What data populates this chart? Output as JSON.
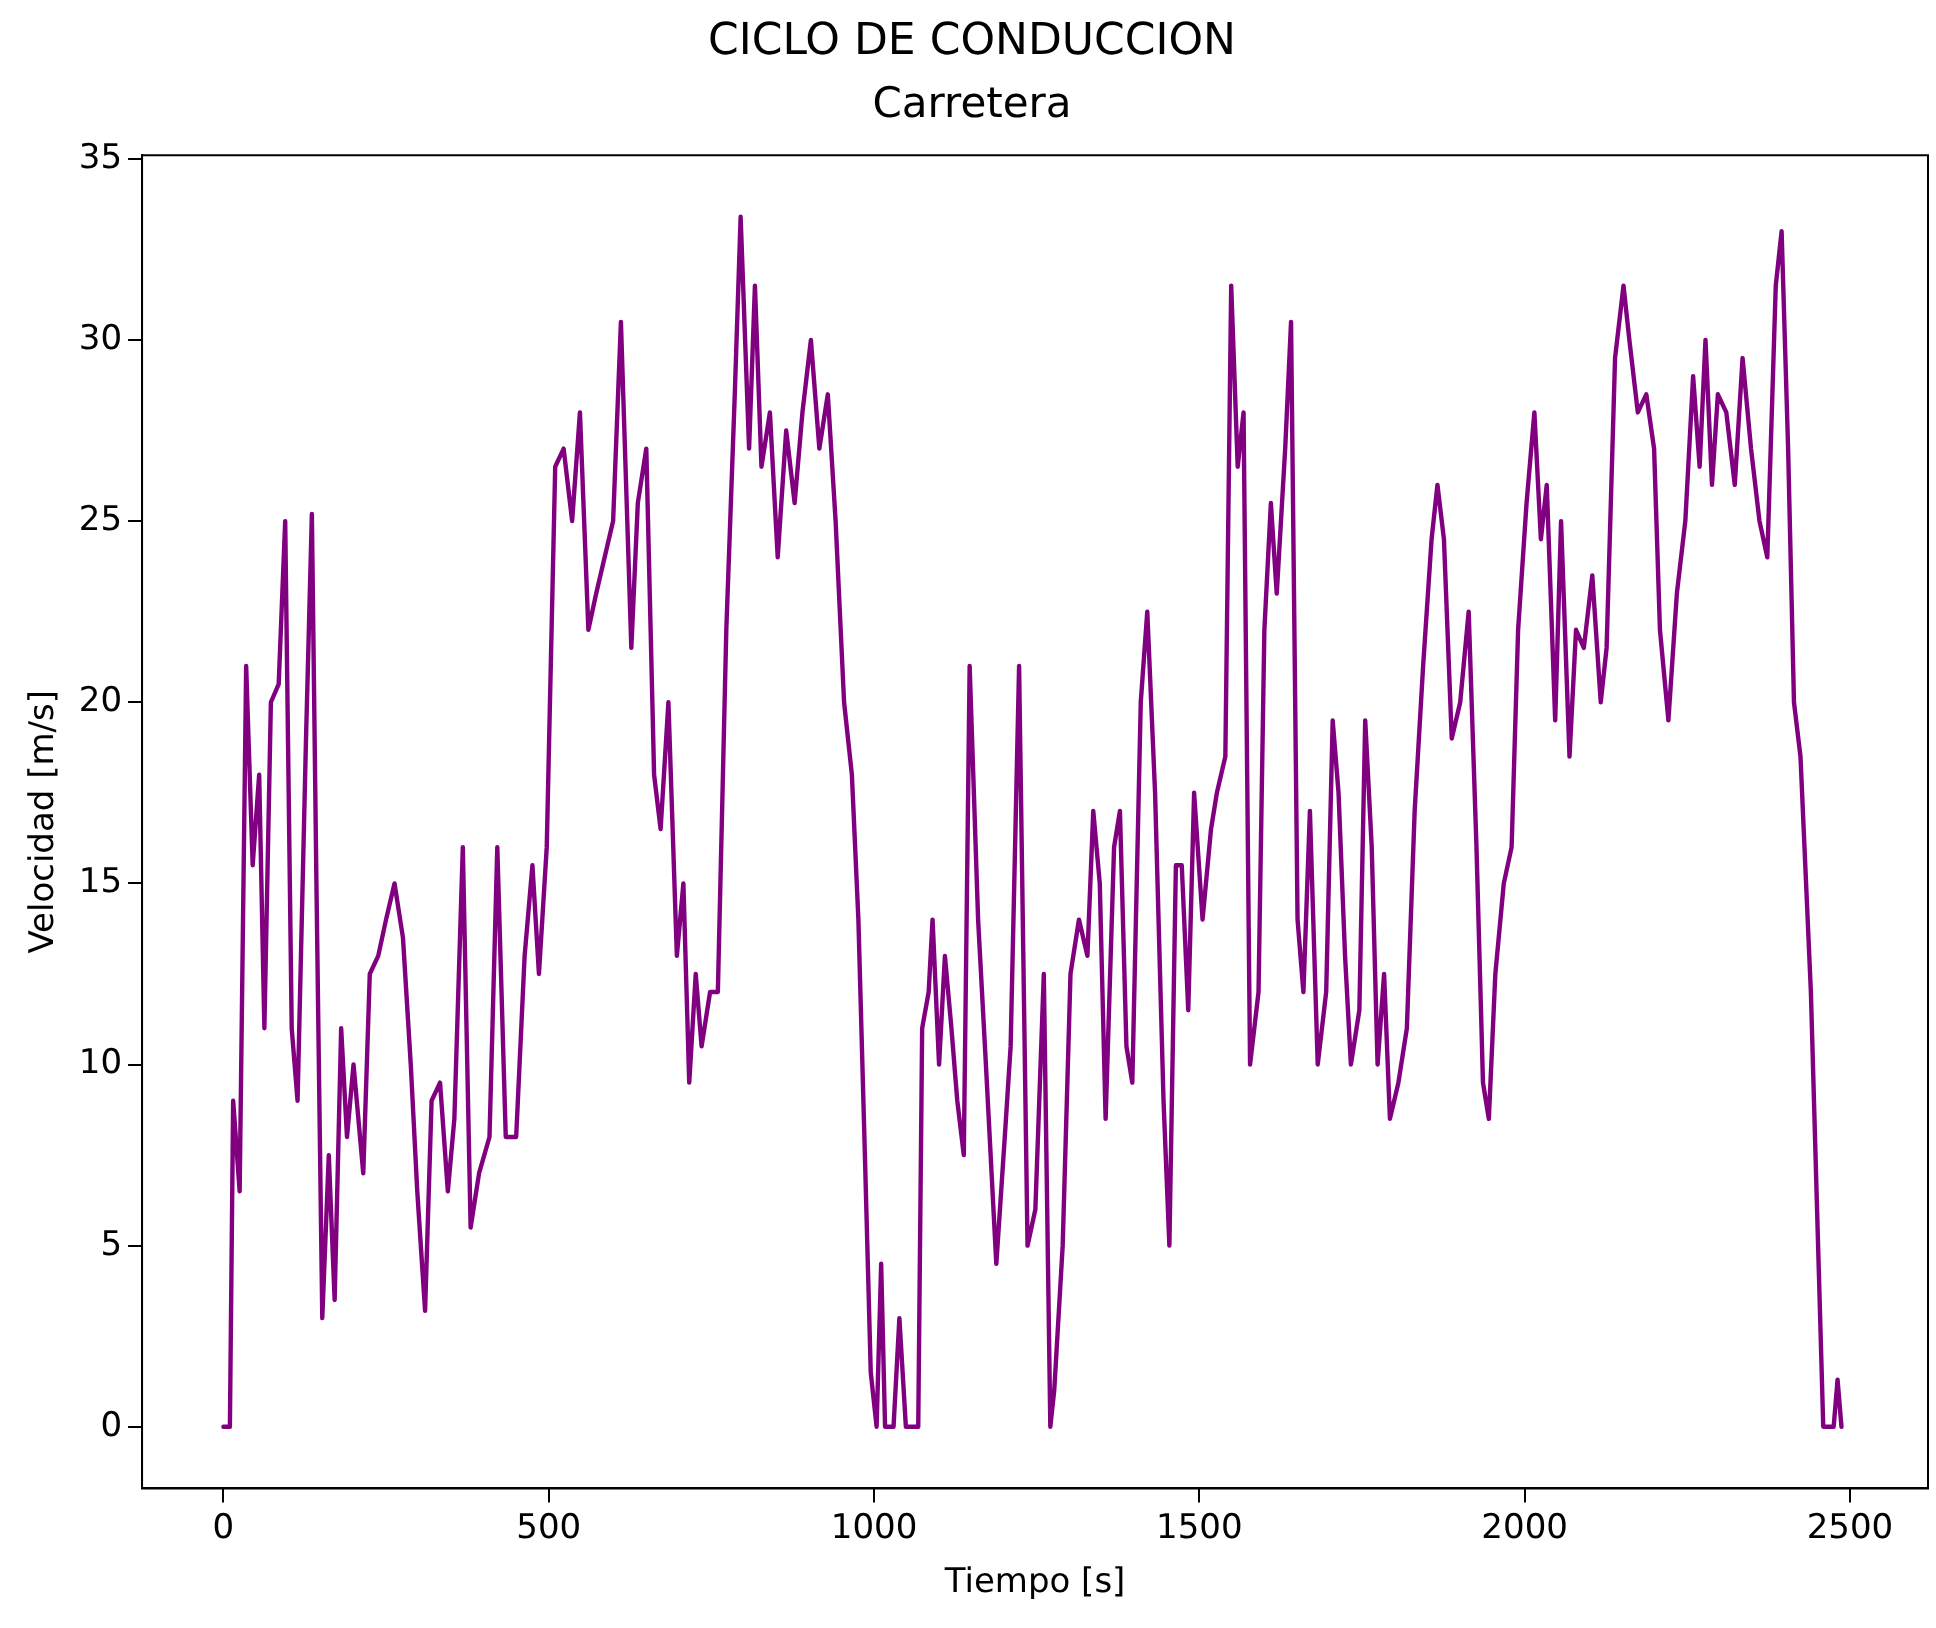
{
  "chart_data": {
    "type": "line",
    "title": "CICLO DE CONDUCCION",
    "subtitle": "Carretera",
    "xlabel": "Tiempo [s]",
    "ylabel": "Velocidad [m/s]",
    "xlim": [
      -125,
      2620
    ],
    "ylim": [
      -1.7,
      35.1
    ],
    "xticks": [
      0,
      500,
      1000,
      1500,
      2000,
      2500
    ],
    "yticks": [
      0,
      5,
      10,
      15,
      20,
      25,
      30,
      35
    ],
    "grid": false,
    "legend": false,
    "marker": "none",
    "line_style": "solid",
    "series": [
      {
        "color": "#800080",
        "x": [
          0,
          10,
          15,
          25,
          35,
          45,
          55,
          63,
          73,
          85,
          95,
          105,
          114,
          127,
          136,
          143,
          152,
          162,
          171,
          181,
          190,
          200,
          215,
          225,
          238,
          250,
          263,
          276,
          288,
          298,
          310,
          320,
          333,
          345,
          355,
          368,
          380,
          393,
          409,
          421,
          434,
          450,
          463,
          475,
          485,
          497,
          510,
          523,
          536,
          548,
          561,
          573,
          586,
          599,
          611,
          627,
          637,
          650,
          662,
          672,
          684,
          697,
          707,
          716,
          726,
          735,
          748,
          760,
          773,
          786,
          795,
          808,
          817,
          827,
          840,
          852,
          865,
          878,
          890,
          903,
          916,
          929,
          941,
          954,
          966,
          976,
          986,
          995,
          1004,
          1011,
          1017,
          1030,
          1039,
          1049,
          1061,
          1068,
          1074,
          1084,
          1090,
          1100,
          1109,
          1119,
          1128,
          1138,
          1147,
          1160,
          1172,
          1188,
          1201,
          1210,
          1223,
          1236,
          1248,
          1261,
          1271,
          1277,
          1290,
          1302,
          1315,
          1328,
          1337,
          1347,
          1356,
          1369,
          1378,
          1388,
          1397,
          1410,
          1420,
          1432,
          1445,
          1454,
          1464,
          1473,
          1483,
          1492,
          1505,
          1518,
          1527,
          1540,
          1549,
          1559,
          1568,
          1578,
          1591,
          1600,
          1610,
          1619,
          1632,
          1641,
          1651,
          1660,
          1670,
          1682,
          1695,
          1705,
          1714,
          1724,
          1733,
          1746,
          1755,
          1765,
          1774,
          1784,
          1793,
          1806,
          1819,
          1831,
          1844,
          1857,
          1866,
          1876,
          1888,
          1901,
          1914,
          1926,
          1936,
          1945,
          1955,
          1968,
          1980,
          1990,
          2003,
          2015,
          2025,
          2034,
          2047,
          2056,
          2069,
          2079,
          2091,
          2104,
          2117,
          2126,
          2139,
          2152,
          2161,
          2174,
          2187,
          2199,
          2208,
          2221,
          2234,
          2247,
          2259,
          2269,
          2278,
          2288,
          2297,
          2310,
          2323,
          2335,
          2348,
          2361,
          2373,
          2386,
          2395,
          2405,
          2414,
          2424,
          2440,
          2459,
          2475,
          2481,
          2487
        ],
        "values": [
          0,
          0,
          9,
          6.5,
          21,
          15.5,
          18,
          11,
          20,
          20.5,
          25,
          11,
          9,
          19,
          25.2,
          15,
          3,
          7.5,
          3.5,
          11,
          8,
          10,
          7,
          12.5,
          13,
          14,
          15,
          13.5,
          10,
          6.5,
          3.2,
          9,
          9.5,
          6.5,
          8.5,
          16,
          5.5,
          7,
          8,
          16,
          8,
          8,
          13,
          15.5,
          12.5,
          16,
          26.5,
          27,
          25,
          28,
          22,
          23,
          24,
          25,
          30.5,
          21.5,
          25.5,
          27,
          18,
          16.5,
          20,
          13,
          15,
          9.5,
          12.5,
          10.5,
          12,
          12,
          22,
          28.5,
          33.4,
          27,
          31.5,
          26.5,
          28,
          24,
          27.5,
          25.5,
          28,
          30,
          27,
          28.5,
          25,
          20,
          18,
          14,
          7.5,
          1.5,
          0,
          4.5,
          0,
          0,
          3,
          0,
          0,
          0,
          11,
          12,
          14,
          10,
          13,
          11,
          9,
          7.5,
          21,
          14,
          10,
          4.5,
          8,
          10.5,
          21,
          5,
          6,
          12.5,
          0,
          1,
          5,
          12.5,
          14,
          13,
          17,
          15,
          8.5,
          16,
          17,
          10.5,
          9.5,
          20,
          22.5,
          17.5,
          9,
          5,
          15.5,
          15.5,
          11.5,
          17.5,
          14,
          16.5,
          17.5,
          18.5,
          31.5,
          26.5,
          28,
          10,
          12,
          22,
          25.5,
          23,
          27,
          30.5,
          14,
          12,
          17,
          10,
          12,
          19.5,
          17.5,
          13,
          10,
          11.5,
          19.5,
          16,
          10,
          12.5,
          8.5,
          9.5,
          11,
          17,
          21,
          24.5,
          26,
          24.5,
          19,
          20,
          22.5,
          16,
          9.5,
          8.5,
          12.5,
          15,
          16,
          22,
          25.5,
          28,
          24.5,
          26,
          19.5,
          25,
          18.5,
          22,
          21.5,
          23.5,
          20,
          21.5,
          29.5,
          31.5,
          30,
          28,
          28.5,
          27,
          22,
          19.5,
          23,
          25,
          29,
          26.5,
          30,
          26,
          28.5,
          28,
          26,
          29.5,
          27,
          25,
          24,
          31.5,
          33,
          27,
          20,
          18.5,
          12,
          0,
          0,
          1.3,
          0
        ]
      }
    ]
  }
}
